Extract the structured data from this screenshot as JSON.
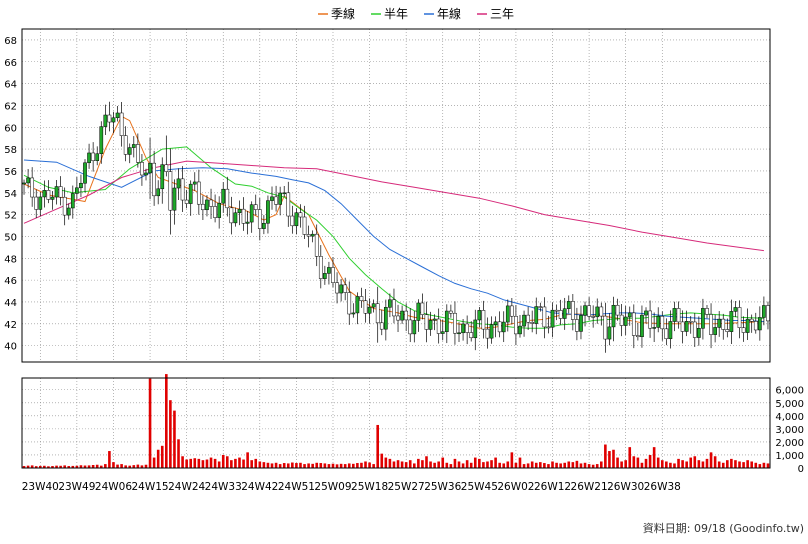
{
  "colors": {
    "up": "#1fa82a",
    "down": "#e00000",
    "volume": "#e00000",
    "quarter_ma": "#e8731d",
    "half_ma": "#2fcf2f",
    "year_ma": "#2a6fd6",
    "three_year_ma": "#d62a7a",
    "grid": "#888888",
    "frame": "#000000"
  },
  "chart_data": [
    {
      "type": "line",
      "subtype": "candlestick",
      "title": "",
      "xlabel": "",
      "ylabel": "",
      "ylim": [
        38.5,
        69
      ],
      "y_ticks": [
        40,
        42,
        44,
        46,
        48,
        50,
        52,
        54,
        56,
        58,
        60,
        62,
        64,
        66,
        68
      ],
      "x_tick_labels": [
        "23W40",
        "23W49",
        "24W06",
        "24W15",
        "24W24",
        "24W33",
        "24W42",
        "24W51",
        "25W09",
        "25W18",
        "25W27",
        "25W36",
        "25W45",
        "26W02",
        "26W12",
        "26W21",
        "26W30",
        "26W38"
      ],
      "grid": true,
      "legend": "top-center",
      "series": [
        {
          "name": "季線",
          "color": "#e8731d",
          "x": [
            0,
            6,
            12,
            15,
            20,
            24,
            26,
            30,
            33,
            36,
            42,
            48,
            55,
            59,
            62,
            64,
            70,
            75,
            80,
            86,
            92,
            96,
            104,
            108,
            112,
            116,
            120,
            124,
            128,
            132,
            136,
            141,
            146,
            152,
            158,
            164,
            170,
            176,
            182
          ],
          "y": [
            54.8,
            53.8,
            53.4,
            53.2,
            58,
            61,
            60.6,
            57.2,
            55.4,
            55,
            54.2,
            53,
            52.3,
            51.5,
            52,
            53.7,
            52,
            48.3,
            45,
            43.4,
            43,
            42.6,
            42.2,
            41.9,
            41.6,
            41.7,
            42,
            42.3,
            42.4,
            42.8,
            42.9,
            42.8,
            42.5,
            42.1,
            42,
            42,
            42,
            42.1,
            42.2
          ]
        },
        {
          "name": "半年",
          "color": "#2fcf2f",
          "x": [
            0,
            6,
            12,
            20,
            26,
            34,
            40,
            46,
            52,
            56,
            60,
            64,
            68,
            72,
            76,
            80,
            84,
            88,
            92,
            96,
            100,
            104,
            108,
            112,
            116,
            120,
            124,
            128,
            132,
            136,
            140,
            144,
            148,
            152,
            156,
            160,
            164,
            168,
            172,
            176,
            182
          ],
          "y": [
            55.6,
            54.5,
            54,
            54.3,
            56.2,
            58,
            58.2,
            56.3,
            54.8,
            54.6,
            54,
            53.6,
            52.5,
            51.5,
            50,
            48,
            46.5,
            45.2,
            44,
            43.2,
            42.8,
            42.5,
            42.2,
            42,
            41.9,
            41.7,
            41.6,
            41.6,
            41.9,
            42,
            42.3,
            42.4,
            42.5,
            42.5,
            42.7,
            42.9,
            43,
            42.9,
            42.8,
            42.6,
            42.5
          ]
        },
        {
          "name": "年線",
          "color": "#2a6fd6",
          "x": [
            0,
            8,
            16,
            24,
            32,
            38,
            44,
            50,
            56,
            62,
            66,
            70,
            74,
            78,
            82,
            86,
            90,
            94,
            98,
            102,
            106,
            110,
            114,
            118,
            122,
            126,
            130,
            134,
            138,
            142,
            146,
            150,
            154,
            158,
            162,
            166,
            170,
            174,
            178,
            182
          ],
          "y": [
            57,
            56.8,
            55.5,
            54.5,
            56,
            56.2,
            56.3,
            56.2,
            55.8,
            55.5,
            55.2,
            54.9,
            54.2,
            53,
            51.5,
            50,
            48.8,
            48,
            47.2,
            46.4,
            45.7,
            45.2,
            44.8,
            44.2,
            43.8,
            43.4,
            43,
            42.9,
            42.8,
            42.9,
            43,
            43,
            42.9,
            42.7,
            42.6,
            42.5,
            42.4,
            42.3,
            42.3,
            42.2
          ]
        },
        {
          "name": "三年",
          "color": "#d62a7a",
          "x": [
            0,
            8,
            16,
            24,
            32,
            40,
            48,
            56,
            64,
            72,
            80,
            88,
            96,
            104,
            112,
            120,
            128,
            136,
            144,
            152,
            160,
            168,
            176,
            182
          ],
          "y": [
            51.2,
            52.5,
            53.8,
            55.4,
            56.3,
            56.9,
            56.7,
            56.5,
            56.3,
            56.2,
            55.6,
            55,
            54.5,
            54,
            53.5,
            52.8,
            52,
            51.5,
            51,
            50.4,
            49.9,
            49.4,
            49,
            48.7
          ]
        }
      ]
    },
    {
      "type": "bar",
      "title": "",
      "xlabel": "",
      "ylabel": "",
      "ylim": [
        0,
        6900
      ],
      "y_ticks": [
        0,
        1000,
        2000,
        3000,
        4000,
        5000,
        6000
      ],
      "y_tick_labels": [
        "0",
        "1,000",
        "2,000",
        "3,000",
        "4,000",
        "5,000",
        "6,000"
      ],
      "grid": true,
      "note_text": "資料日期: 09/18  (Goodinfo.tw)",
      "series": [
        {
          "name": "",
          "color": "#e00000",
          "values": [
            150,
            180,
            200,
            140,
            160,
            170,
            130,
            150,
            180,
            170,
            200,
            150,
            160,
            170,
            210,
            190,
            200,
            230,
            250,
            180,
            300,
            1300,
            450,
            260,
            300,
            200,
            180,
            220,
            260,
            200,
            250,
            6850,
            800,
            1400,
            1700,
            7200,
            5200,
            4400,
            2200,
            900,
            650,
            700,
            750,
            700,
            600,
            650,
            800,
            700,
            500,
            1000,
            900,
            600,
            700,
            800,
            650,
            1200,
            600,
            700,
            500,
            450,
            400,
            350,
            400,
            300,
            380,
            350,
            420,
            380,
            400,
            300,
            350,
            320,
            400,
            380,
            350,
            300,
            330,
            280,
            320,
            300,
            350,
            320,
            380,
            400,
            500,
            420,
            300,
            3300,
            1100,
            800,
            700,
            500,
            600,
            500,
            450,
            600,
            350,
            700,
            600,
            900,
            500,
            400,
            500,
            800,
            400,
            300,
            700,
            500,
            350,
            600,
            400,
            800,
            700,
            450,
            500,
            600,
            800,
            400,
            350,
            500,
            1200,
            400,
            800,
            300,
            350,
            500,
            400,
            450,
            380,
            300,
            500,
            400,
            350,
            400,
            500,
            450,
            550,
            350,
            400,
            300,
            250,
            300,
            500,
            1800,
            1300,
            1400,
            800,
            500,
            600,
            1600,
            900,
            800,
            400,
            700,
            1000,
            1600,
            800,
            600,
            500,
            400,
            350,
            700,
            600,
            500,
            800,
            900,
            600,
            500,
            700,
            1200,
            900,
            500,
            400,
            600,
            700,
            600,
            500,
            450,
            600,
            500,
            400,
            300,
            400,
            350
          ]
        }
      ]
    }
  ]
}
